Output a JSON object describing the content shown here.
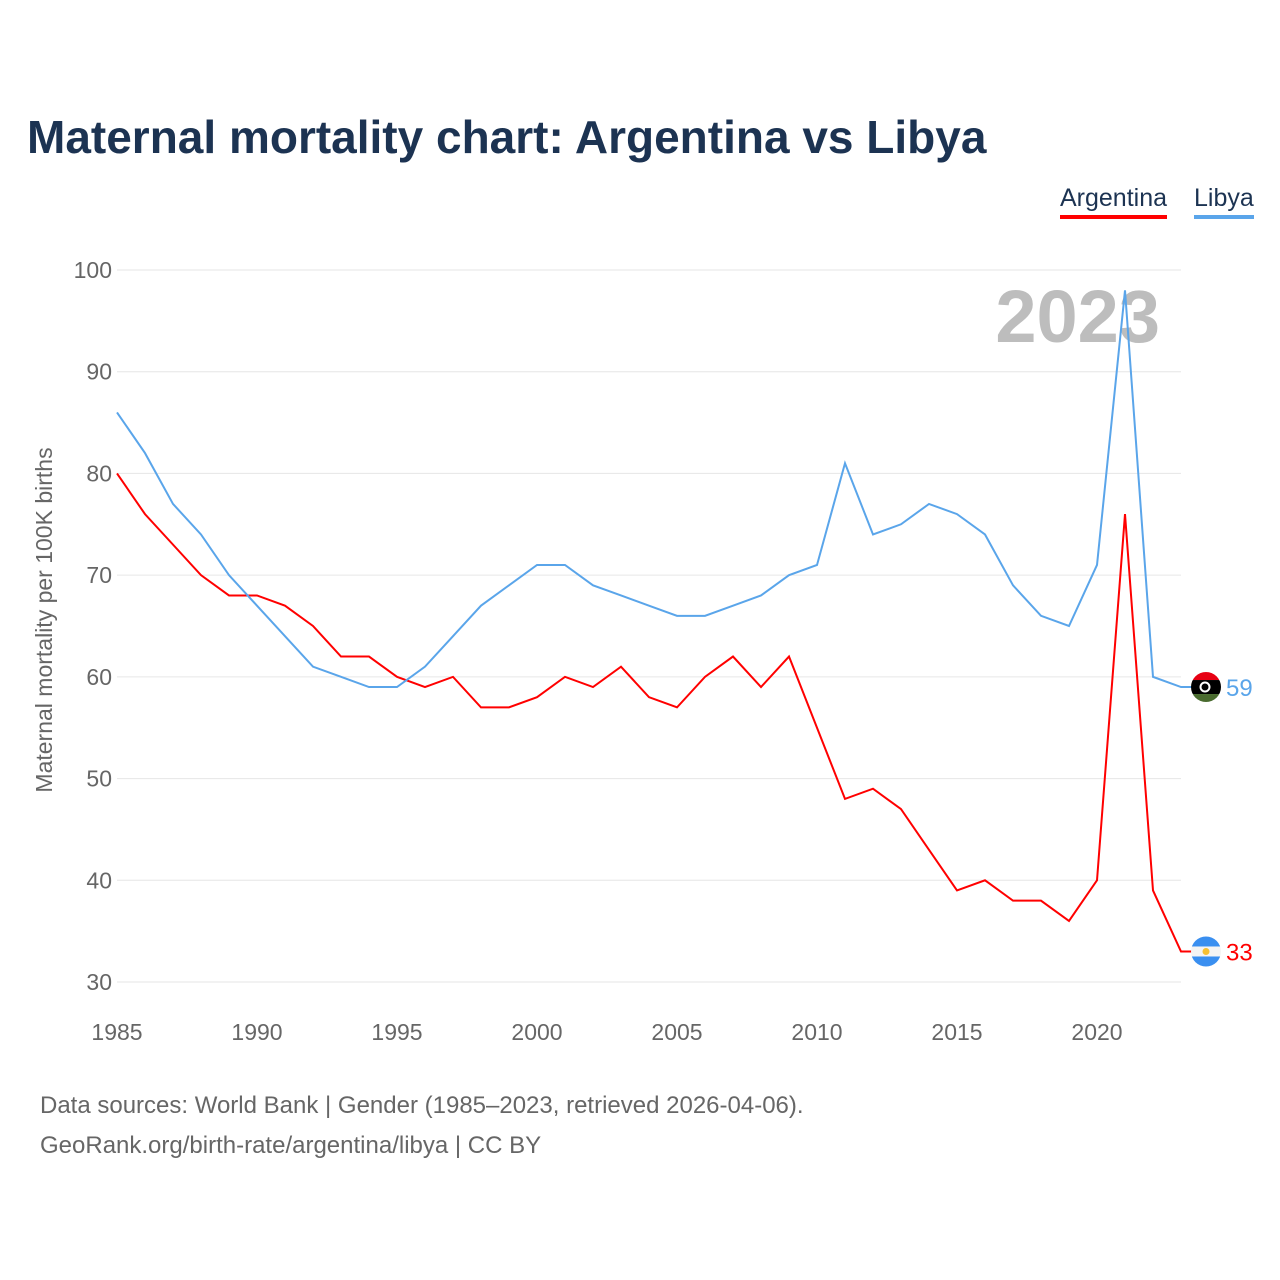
{
  "title": "Maternal mortality chart: Argentina vs Libya",
  "footer": {
    "line1": "Data sources: World Bank | Gender (1985–2023, retrieved 2026-04-06).",
    "line2": "GeoRank.org/birth-rate/argentina/libya | CC BY"
  },
  "chart_data": {
    "type": "line",
    "title": "Maternal mortality chart: Argentina vs Libya",
    "xlabel": "",
    "ylabel": "Maternal mortality per 100K births",
    "year_label": "2023",
    "xlim": [
      1985,
      2023
    ],
    "ylim": [
      30,
      100
    ],
    "xticks": [
      "1985",
      "1990",
      "1995",
      "2000",
      "2005",
      "2010",
      "2015",
      "2020"
    ],
    "yticks": [
      "30",
      "40",
      "50",
      "60",
      "70",
      "80",
      "90",
      "100"
    ],
    "grid": true,
    "legend_position": "top-right",
    "x": [
      1985,
      1986,
      1987,
      1988,
      1989,
      1990,
      1991,
      1992,
      1993,
      1994,
      1995,
      1996,
      1997,
      1998,
      1999,
      2000,
      2001,
      2002,
      2003,
      2004,
      2005,
      2006,
      2007,
      2008,
      2009,
      2010,
      2011,
      2012,
      2013,
      2014,
      2015,
      2016,
      2017,
      2018,
      2019,
      2020,
      2021,
      2022,
      2023
    ],
    "series": [
      {
        "name": "Argentina",
        "color": "#ff0000",
        "end_label": "33",
        "flag": "argentina-flag",
        "values": [
          80,
          76,
          73,
          70,
          68,
          68,
          67,
          65,
          62,
          62,
          60,
          59,
          60,
          57,
          57,
          58,
          60,
          59,
          61,
          58,
          57,
          60,
          62,
          59,
          62,
          55,
          48,
          49,
          47,
          43,
          39,
          40,
          38,
          38,
          36,
          40,
          76,
          39,
          33
        ]
      },
      {
        "name": "Libya",
        "color": "#5aa5ea",
        "end_label": "59",
        "flag": "libya-flag",
        "values": [
          86,
          82,
          77,
          74,
          70,
          67,
          64,
          61,
          60,
          59,
          59,
          61,
          64,
          67,
          69,
          71,
          71,
          69,
          68,
          67,
          66,
          66,
          67,
          68,
          70,
          71,
          81,
          74,
          75,
          77,
          76,
          74,
          69,
          66,
          65,
          71,
          98,
          60,
          59
        ]
      }
    ]
  }
}
